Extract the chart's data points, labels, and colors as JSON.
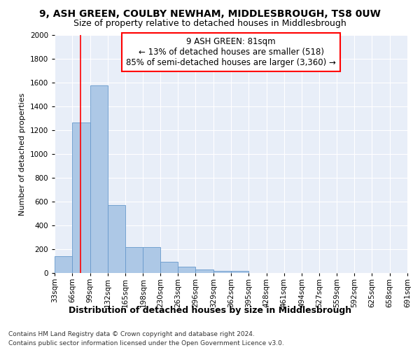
{
  "title_line1": "9, ASH GREEN, COULBY NEWHAM, MIDDLESBROUGH, TS8 0UW",
  "title_line2": "Size of property relative to detached houses in Middlesbrough",
  "xlabel": "Distribution of detached houses by size in Middlesbrough",
  "ylabel": "Number of detached properties",
  "annotation_line1": "9 ASH GREEN: 81sqm",
  "annotation_line2": "← 13% of detached houses are smaller (518)",
  "annotation_line3": "85% of semi-detached houses are larger (3,360) →",
  "footer_line1": "Contains HM Land Registry data © Crown copyright and database right 2024.",
  "footer_line2": "Contains public sector information licensed under the Open Government Licence v3.0.",
  "bar_color": "#adc8e6",
  "bar_edge_color": "#6699cc",
  "red_line_x": 81,
  "ylim": [
    0,
    2000
  ],
  "yticks": [
    0,
    200,
    400,
    600,
    800,
    1000,
    1200,
    1400,
    1600,
    1800,
    2000
  ],
  "bin_edges": [
    33,
    66,
    99,
    132,
    165,
    198,
    230,
    263,
    296,
    329,
    362,
    395,
    428,
    461,
    494,
    527,
    559,
    592,
    625,
    658,
    691
  ],
  "bar_values": [
    140,
    1265,
    1575,
    570,
    220,
    220,
    93,
    52,
    28,
    15,
    15,
    0,
    0,
    0,
    0,
    0,
    0,
    0,
    0,
    0
  ],
  "background_color": "#e8eef8",
  "grid_color": "#ffffff",
  "title1_fontsize": 10,
  "title2_fontsize": 9,
  "ylabel_fontsize": 8,
  "xlabel_fontsize": 9,
  "tick_fontsize": 7.5,
  "footer_fontsize": 6.5,
  "annot_fontsize": 8.5
}
